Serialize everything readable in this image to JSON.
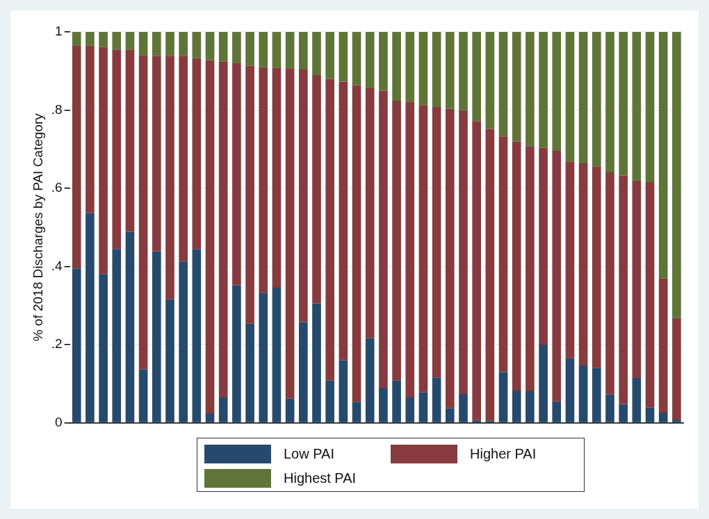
{
  "chart_data": {
    "type": "bar",
    "stacked": true,
    "ylabel": "% of 2018 Discharges by PAI Category",
    "categories": [
      null,
      null,
      null,
      null,
      null,
      null,
      null,
      null,
      null,
      null,
      null,
      null,
      null,
      null,
      null,
      null,
      null,
      null,
      null,
      null,
      null,
      null,
      null,
      null,
      null,
      null,
      null,
      null,
      null,
      null,
      null,
      null,
      null,
      null,
      null,
      null,
      null,
      null,
      null,
      null,
      null,
      null,
      null,
      null,
      null,
      null
    ],
    "series": [
      {
        "name": "Low PAI",
        "color": "#264a6e",
        "values": [
          0.395,
          0.537,
          0.381,
          0.445,
          0.489,
          0.137,
          0.439,
          0.316,
          0.413,
          0.445,
          0.024,
          0.065,
          0.352,
          0.254,
          0.333,
          0.346,
          0.062,
          0.258,
          0.306,
          0.108,
          0.16,
          0.054,
          0.217,
          0.09,
          0.108,
          0.065,
          0.078,
          0.116,
          0.037,
          0.074,
          0.007,
          0.006,
          0.13,
          0.083,
          0.081,
          0.2,
          0.055,
          0.166,
          0.147,
          0.141,
          0.073,
          0.048,
          0.115,
          0.039,
          0.026,
          0.008
        ]
      },
      {
        "name": "Higher PAI",
        "color": "#873b3e",
        "values": [
          0.571,
          0.428,
          0.581,
          0.51,
          0.466,
          0.804,
          0.5,
          0.623,
          0.526,
          0.488,
          0.904,
          0.859,
          0.568,
          0.66,
          0.577,
          0.563,
          0.845,
          0.646,
          0.584,
          0.772,
          0.713,
          0.81,
          0.639,
          0.76,
          0.716,
          0.757,
          0.735,
          0.692,
          0.766,
          0.726,
          0.765,
          0.746,
          0.603,
          0.637,
          0.627,
          0.504,
          0.641,
          0.503,
          0.517,
          0.515,
          0.568,
          0.585,
          0.505,
          0.577,
          0.344,
          0.26
        ]
      },
      {
        "name": "Highest PAI",
        "color": "#5f7537",
        "values": [
          0.034,
          0.035,
          0.038,
          0.045,
          0.045,
          0.059,
          0.061,
          0.061,
          0.061,
          0.067,
          0.072,
          0.076,
          0.08,
          0.086,
          0.09,
          0.091,
          0.093,
          0.096,
          0.11,
          0.12,
          0.127,
          0.136,
          0.144,
          0.15,
          0.176,
          0.178,
          0.187,
          0.192,
          0.197,
          0.2,
          0.228,
          0.248,
          0.267,
          0.28,
          0.292,
          0.296,
          0.304,
          0.331,
          0.336,
          0.344,
          0.359,
          0.367,
          0.38,
          0.384,
          0.63,
          0.732
        ]
      }
    ],
    "ylim": [
      0,
      1
    ],
    "yticks": [
      0,
      {
        "value": 0.2,
        "label": ".2"
      },
      {
        "value": 0.4,
        "label": ".4"
      },
      {
        "value": 0.6,
        "label": ".6"
      },
      {
        "value": 0.8,
        "label": ".8"
      },
      1
    ],
    "grid": "y",
    "legend": "bottom"
  }
}
